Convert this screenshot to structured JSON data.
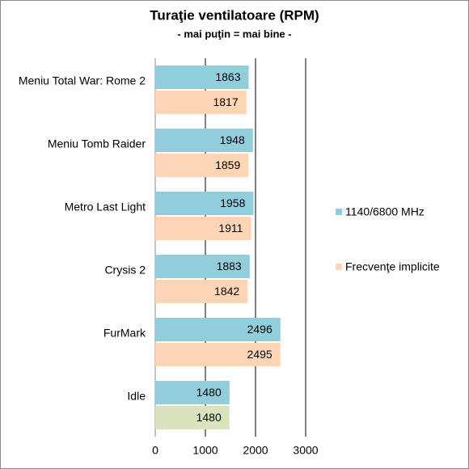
{
  "chart_data": {
    "type": "hbar",
    "title": "Turaţie ventilatoare (RPM)",
    "subtitle": "- mai puţin = mai bine -",
    "categories": [
      "Meniu Total War: Rome 2",
      "Meniu Tomb Raider",
      "Metro Last Light",
      "Crysis 2",
      "FurMark",
      "Idle"
    ],
    "series": [
      {
        "name": "1140/6800 MHz",
        "color": "#92cddc",
        "values": [
          1863,
          1948,
          1958,
          1883,
          2496,
          1480
        ]
      },
      {
        "name": "Frecvenţe implicite",
        "color": "#fcd5b4",
        "colors": [
          "#fcd5b4",
          "#fcd5b4",
          "#fcd5b4",
          "#fcd5b4",
          "#fcd5b4",
          "#d7e4bc"
        ],
        "values": [
          1817,
          1859,
          1911,
          1842,
          2495,
          1480
        ]
      }
    ],
    "xlim": [
      0,
      3000
    ],
    "xticks": [
      0,
      1000,
      2000,
      3000
    ],
    "grid": true,
    "legend": "right"
  }
}
